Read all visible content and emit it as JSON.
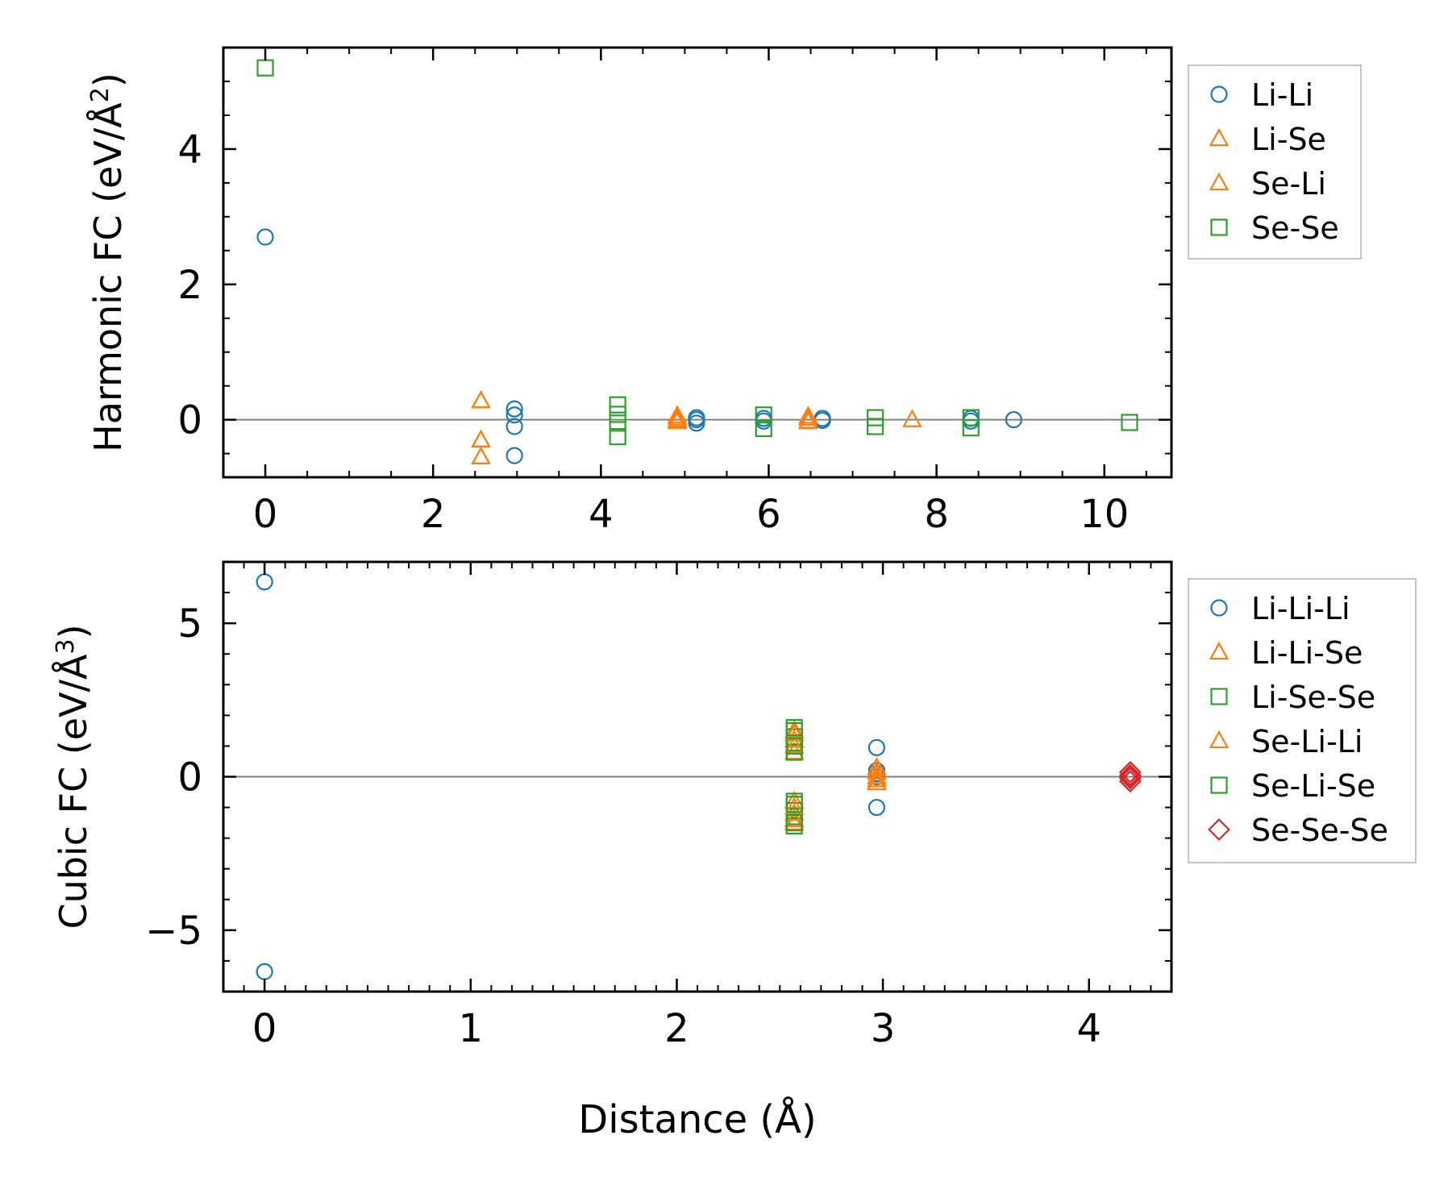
{
  "chart_data": [
    {
      "type": "scatter",
      "panel": "top",
      "title": "",
      "xlabel": "",
      "ylabel": "Harmonic FC (eV/Å",
      "ylabel_sup": "2",
      "ylabel_close": ")",
      "xlim": [
        -0.5,
        10.8
      ],
      "ylim": [
        -0.85,
        5.5
      ],
      "xticks": [
        0,
        2,
        4,
        6,
        8,
        10
      ],
      "xtick_labels": [
        "0",
        "2",
        "4",
        "6",
        "8",
        "10"
      ],
      "yticks": [
        0,
        2,
        4
      ],
      "ytick_labels": [
        "0",
        "2",
        "4"
      ],
      "reference_line": 0,
      "legend_position": "outside-right",
      "series": [
        {
          "name": "Li-Li",
          "marker": "circle",
          "color": "#1f77b4",
          "points": [
            [
              0,
              2.7
            ],
            [
              2.97,
              0.16
            ],
            [
              2.97,
              0.07
            ],
            [
              2.97,
              -0.1
            ],
            [
              2.97,
              -0.53
            ],
            [
              5.14,
              0.03
            ],
            [
              5.14,
              0
            ],
            [
              5.14,
              -0.05
            ],
            [
              5.94,
              0.02
            ],
            [
              5.94,
              -0.02
            ],
            [
              6.64,
              0.02
            ],
            [
              6.64,
              -0.01
            ],
            [
              8.41,
              0.02
            ],
            [
              8.41,
              -0.02
            ],
            [
              8.92,
              0
            ]
          ]
        },
        {
          "name": "Li-Se",
          "marker": "triangle",
          "color": "#ff7f0e",
          "points": [
            [
              2.57,
              0.28
            ],
            [
              2.57,
              -0.3
            ],
            [
              2.57,
              -0.55
            ],
            [
              4.91,
              0.06
            ],
            [
              4.91,
              0
            ],
            [
              4.91,
              -0.03
            ],
            [
              6.47,
              0.05
            ],
            [
              6.47,
              -0.02
            ],
            [
              7.71,
              0
            ]
          ]
        },
        {
          "name": "Se-Li",
          "marker": "triangle",
          "color": "#ff7f0e",
          "points": [
            [
              2.57,
              0.28
            ],
            [
              2.57,
              -0.3
            ],
            [
              2.57,
              -0.55
            ],
            [
              4.91,
              0.03
            ],
            [
              4.91,
              -0.02
            ],
            [
              6.47,
              0.02
            ],
            [
              6.47,
              -0.03
            ]
          ]
        },
        {
          "name": "Se-Se",
          "marker": "square",
          "color": "#2ca02c",
          "points": [
            [
              0,
              5.2
            ],
            [
              4.2,
              0.22
            ],
            [
              4.2,
              0.08
            ],
            [
              4.2,
              -0.05
            ],
            [
              4.2,
              -0.25
            ],
            [
              5.94,
              0.07
            ],
            [
              5.94,
              -0.13
            ],
            [
              7.27,
              0.03
            ],
            [
              7.27,
              -0.1
            ],
            [
              8.41,
              0.03
            ],
            [
              8.41,
              -0.12
            ],
            [
              10.3,
              -0.04
            ]
          ]
        }
      ]
    },
    {
      "type": "scatter",
      "panel": "bottom",
      "title": "",
      "xlabel": "Distance (Å)",
      "ylabel": "Cubic FC (eV/Å",
      "ylabel_sup": "3",
      "ylabel_close": ")",
      "xlim": [
        -0.2,
        4.4
      ],
      "ylim": [
        -7,
        7
      ],
      "xticks": [
        0,
        1,
        2,
        3,
        4
      ],
      "xtick_labels": [
        "0",
        "1",
        "2",
        "3",
        "4"
      ],
      "yticks": [
        -5,
        0,
        5
      ],
      "ytick_labels": [
        "−5",
        "0",
        "5"
      ],
      "reference_line": 0,
      "legend_position": "outside-right",
      "series": [
        {
          "name": "Li-Li-Li",
          "marker": "circle",
          "color": "#1f77b4",
          "points": [
            [
              0,
              6.35
            ],
            [
              0,
              -6.35
            ],
            [
              2.97,
              0.95
            ],
            [
              2.97,
              0.2
            ],
            [
              2.97,
              0.1
            ],
            [
              2.97,
              0
            ],
            [
              2.97,
              -1.0
            ]
          ]
        },
        {
          "name": "Li-Li-Se",
          "marker": "triangle",
          "color": "#ff7f0e",
          "points": [
            [
              2.57,
              1.5
            ],
            [
              2.57,
              1.2
            ],
            [
              2.57,
              0.8
            ],
            [
              2.57,
              -0.8
            ],
            [
              2.57,
              -1.2
            ],
            [
              2.57,
              -1.5
            ],
            [
              2.97,
              0.3
            ],
            [
              2.97,
              0
            ],
            [
              2.97,
              -0.2
            ]
          ]
        },
        {
          "name": "Li-Se-Se",
          "marker": "square",
          "color": "#2ca02c",
          "points": [
            [
              2.57,
              1.5
            ],
            [
              2.57,
              1.3
            ],
            [
              2.57,
              1.1
            ],
            [
              2.57,
              0.8
            ],
            [
              2.57,
              -0.8
            ],
            [
              2.57,
              -1.1
            ],
            [
              2.57,
              -1.3
            ],
            [
              2.57,
              -1.6
            ]
          ]
        },
        {
          "name": "Se-Li-Li",
          "marker": "triangle",
          "color": "#ff7f0e",
          "points": [
            [
              2.57,
              1.4
            ],
            [
              2.57,
              1.0
            ],
            [
              2.57,
              -1.0
            ],
            [
              2.57,
              -1.4
            ],
            [
              2.97,
              0.15
            ],
            [
              2.97,
              -0.1
            ]
          ]
        },
        {
          "name": "Se-Li-Se",
          "marker": "square",
          "color": "#2ca02c",
          "points": [
            [
              2.57,
              1.6
            ],
            [
              2.57,
              1.0
            ],
            [
              2.57,
              -0.9
            ],
            [
              2.57,
              -1.5
            ]
          ]
        },
        {
          "name": "Se-Se-Se",
          "marker": "diamond",
          "color": "#d62728",
          "points": [
            [
              4.2,
              0.15
            ],
            [
              4.2,
              0.05
            ],
            [
              4.2,
              0
            ],
            [
              4.2,
              -0.05
            ],
            [
              4.2,
              -0.15
            ]
          ]
        }
      ]
    }
  ]
}
